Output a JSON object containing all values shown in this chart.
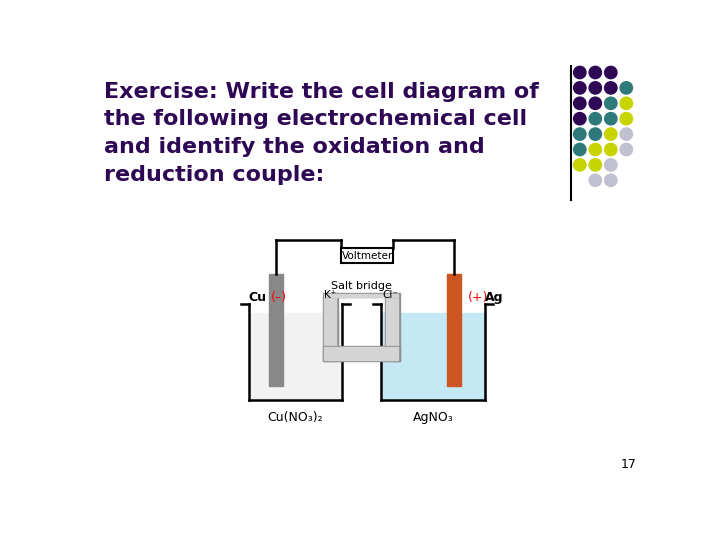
{
  "title_line1": "Exercise: Write the cell diagram of",
  "title_line2": "the following electrochemical cell",
  "title_line3": "and identify the oxidation and",
  "title_line4": "reduction couple:",
  "title_color": "#2e0854",
  "bg_color": "#ffffff",
  "voltmeter_label": "Voltmeter",
  "salt_bridge_label": "Salt bridge",
  "kplus_label": "K⁺",
  "clminus_label": "Cl⁻",
  "cu_label": "Cu",
  "cu_sign": "(–)",
  "ag_sign": "(+)",
  "ag_label": "Ag",
  "left_solution": "Cu(NO₃)₂",
  "right_solution": "AgNO₃",
  "page_number": "17",
  "grid_colors": [
    [
      "#2e0854",
      "#2e0854",
      "#2e0854",
      ""
    ],
    [
      "#2e0854",
      "#2e0854",
      "#2e0854",
      "#2e7a7a"
    ],
    [
      "#2e0854",
      "#2e0854",
      "#2e7a7a",
      "#c8d400"
    ],
    [
      "#2e0854",
      "#2e7a7a",
      "#2e7a7a",
      "#c8d400"
    ],
    [
      "#2e7a7a",
      "#2e7a7a",
      "#c8d400",
      "#c0c0d0"
    ],
    [
      "#2e7a7a",
      "#c8d400",
      "#c8d400",
      "#c0c0d0"
    ],
    [
      "#c8d400",
      "#c8d400",
      "#c0c0d0",
      ""
    ],
    [
      "",
      "#c0c0d0",
      "#c0c0d0",
      ""
    ]
  ]
}
